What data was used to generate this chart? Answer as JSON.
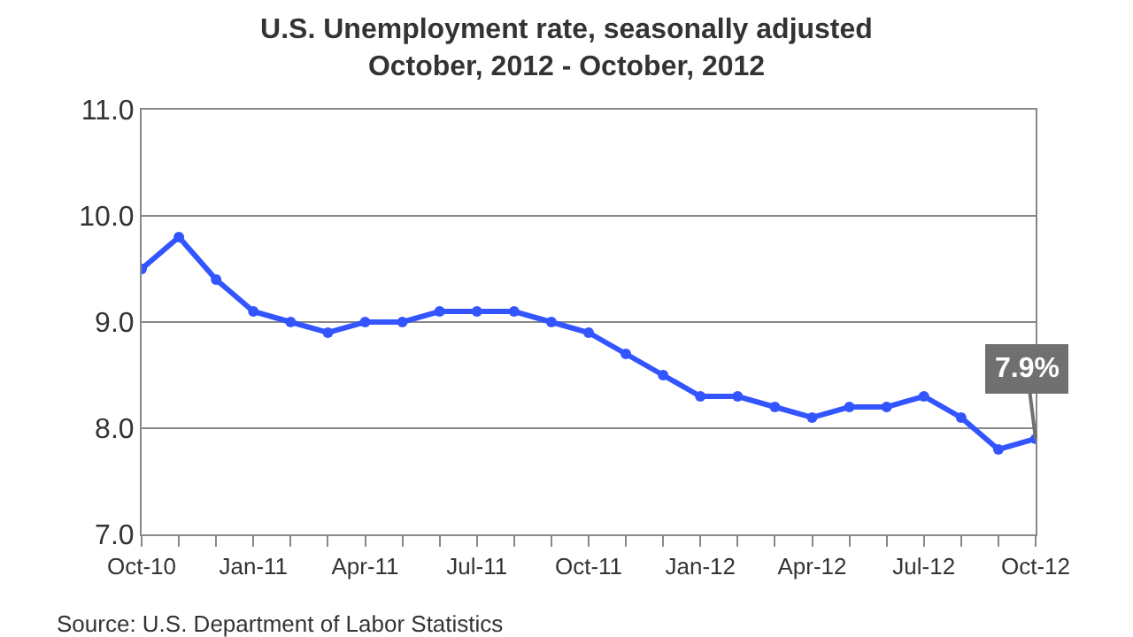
{
  "chart_data": {
    "type": "line",
    "title": "U.S. Unemployment rate, seasonally adjusted\nOctober, 2012 - October, 2012",
    "categories": [
      "Oct-10",
      null,
      null,
      "Jan-11",
      null,
      null,
      "Apr-11",
      null,
      null,
      "Jul-11",
      null,
      null,
      "Oct-11",
      null,
      null,
      "Jan-12",
      null,
      null,
      "Apr-12",
      null,
      null,
      "Jul-12",
      null,
      null,
      "Oct-12"
    ],
    "series": [
      {
        "color": "#3355ff",
        "values": [
          9.5,
          9.8,
          9.4,
          9.1,
          9.0,
          8.9,
          9.0,
          9.0,
          9.1,
          9.1,
          9.1,
          9.0,
          8.9,
          8.7,
          8.5,
          8.3,
          8.3,
          8.2,
          8.1,
          8.2,
          8.2,
          8.3,
          8.1,
          7.8,
          7.9
        ]
      }
    ],
    "ylim": [
      7.0,
      11.0
    ],
    "yticks": [
      {
        "value": 7,
        "label": "7.0"
      },
      {
        "value": 8,
        "label": "8.0"
      },
      {
        "value": 9,
        "label": "9.0"
      },
      {
        "value": 10,
        "label": "10.0"
      },
      {
        "value": 11,
        "label": "11.0"
      }
    ],
    "grid": "y",
    "marker": "circle",
    "line_style": "solid",
    "annotations": [
      {
        "text": "7.9%",
        "x": "Oct-12",
        "y": 7.9
      },
      "Source: U.S. Department of Labor Statistics"
    ]
  }
}
